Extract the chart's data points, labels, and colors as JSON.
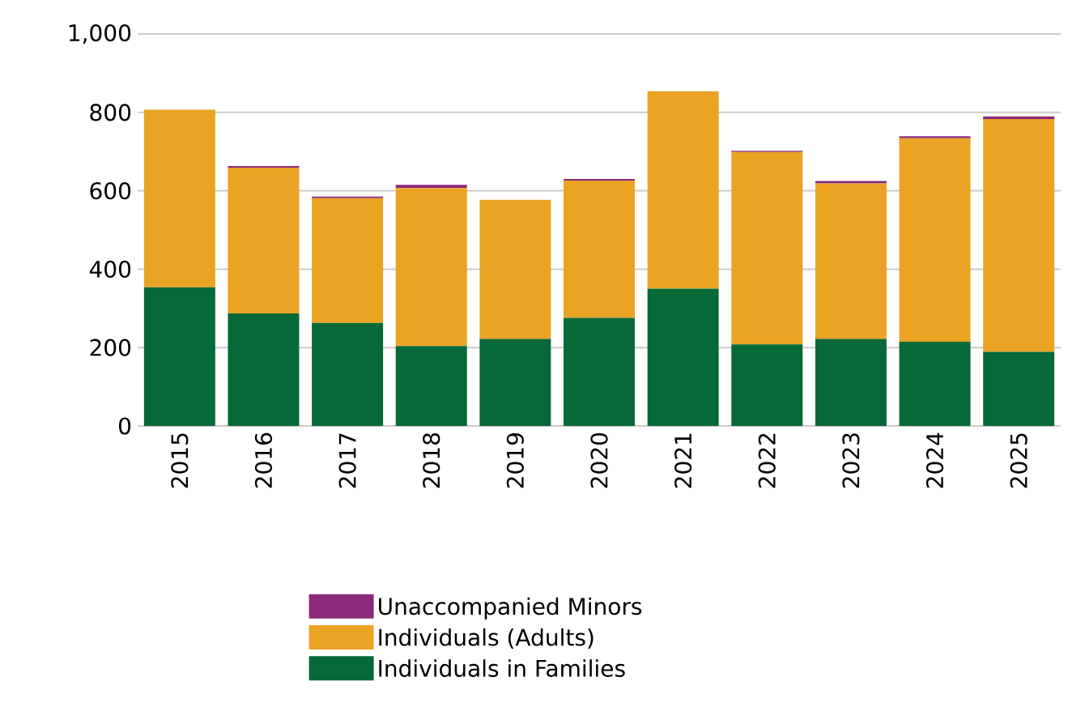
{
  "chart_data": {
    "type": "bar",
    "stacked": true,
    "categories": [
      "2015",
      "2016",
      "2017",
      "2018",
      "2019",
      "2020",
      "2021",
      "2022",
      "2023",
      "2024",
      "2025"
    ],
    "series": [
      {
        "name": "Individuals in Families",
        "color": "#076937",
        "values": [
          354,
          287,
          263,
          204,
          222,
          276,
          350,
          208,
          222,
          215,
          189
        ]
      },
      {
        "name": "Individuals (Adults)",
        "color": "#eba324",
        "values": [
          453,
          372,
          318,
          403,
          355,
          350,
          504,
          491,
          397,
          519,
          594
        ]
      },
      {
        "name": "Unaccompanied Minors",
        "color": "#8b2a7a",
        "values": [
          0,
          4,
          4,
          8,
          0,
          4,
          0,
          3,
          6,
          5,
          7
        ]
      }
    ],
    "ylim": [
      0,
      1000
    ],
    "yticks": [
      0,
      200,
      400,
      600,
      800,
      {
        "value": 1000,
        "label": "1,000"
      }
    ],
    "grid": "y",
    "legend": "bottom"
  }
}
